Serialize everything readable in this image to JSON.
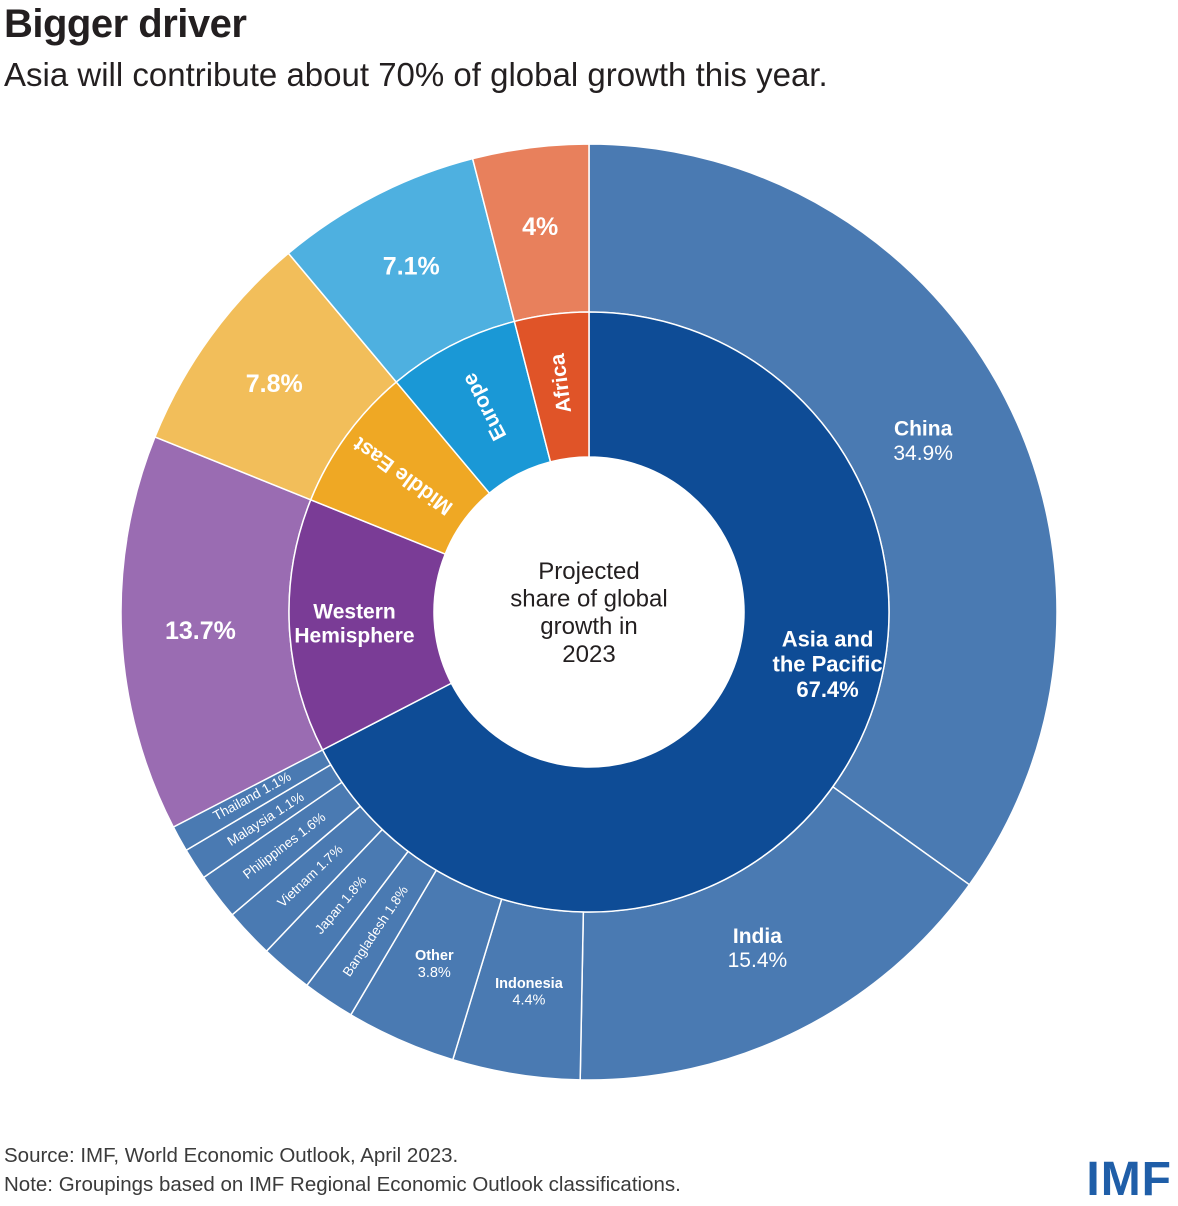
{
  "header": {
    "title": "Bigger driver",
    "subtitle": "Asia will contribute about 70% of global growth this year."
  },
  "center_label": [
    "Projected",
    "share of global",
    "growth in",
    "2023"
  ],
  "footer": {
    "source": "Source: IMF, World Economic Outlook, April 2023.",
    "note": "Note: Groupings based on IMF Regional Economic Outlook classifications.",
    "logo": "IMF"
  },
  "colors": {
    "asia_inner": "#0e4c96",
    "asia_outer": "#4a7ab2",
    "western_inner": "#7a3c96",
    "western_outer": "#9a6cb2",
    "middle_east_inner": "#efa824",
    "middle_east_outer": "#f2be5a",
    "europe_inner": "#1a98d6",
    "europe_outer": "#4eb0e0",
    "africa_inner": "#e05428",
    "africa_outer": "#e8805c"
  },
  "chart_data": {
    "type": "pie",
    "subtype": "sunburst",
    "unit": "%",
    "regions": [
      {
        "key": "asia",
        "name": "Asia and the Pacific",
        "value": 67.4,
        "label": "67.4%",
        "children": [
          {
            "name": "China",
            "value": 34.9,
            "label": "34.9%"
          },
          {
            "name": "India",
            "value": 15.4,
            "label": "15.4%"
          },
          {
            "name": "Indonesia",
            "value": 4.4,
            "label": "4.4%"
          },
          {
            "name": "Other",
            "value": 3.8,
            "label": "3.8%"
          },
          {
            "name": "Bangladesh",
            "value": 1.8,
            "label": "1.8%"
          },
          {
            "name": "Japan",
            "value": 1.8,
            "label": "1.8%"
          },
          {
            "name": "Vietnam",
            "value": 1.7,
            "label": "1.7%"
          },
          {
            "name": "Philippines",
            "value": 1.6,
            "label": "1.6%"
          },
          {
            "name": "Malaysia",
            "value": 1.1,
            "label": "1.1%"
          },
          {
            "name": "Thailand",
            "value": 1.1,
            "label": "1.1%"
          }
        ]
      },
      {
        "key": "western",
        "name": "Western Hemisphere",
        "value": 13.7,
        "label": "13.7%"
      },
      {
        "key": "middle_east",
        "name": "Middle East",
        "value": 7.8,
        "label": "7.8%"
      },
      {
        "key": "europe",
        "name": "Europe",
        "value": 7.1,
        "label": "7.1%"
      },
      {
        "key": "africa",
        "name": "Africa",
        "value": 4.0,
        "label": "4%"
      }
    ]
  }
}
